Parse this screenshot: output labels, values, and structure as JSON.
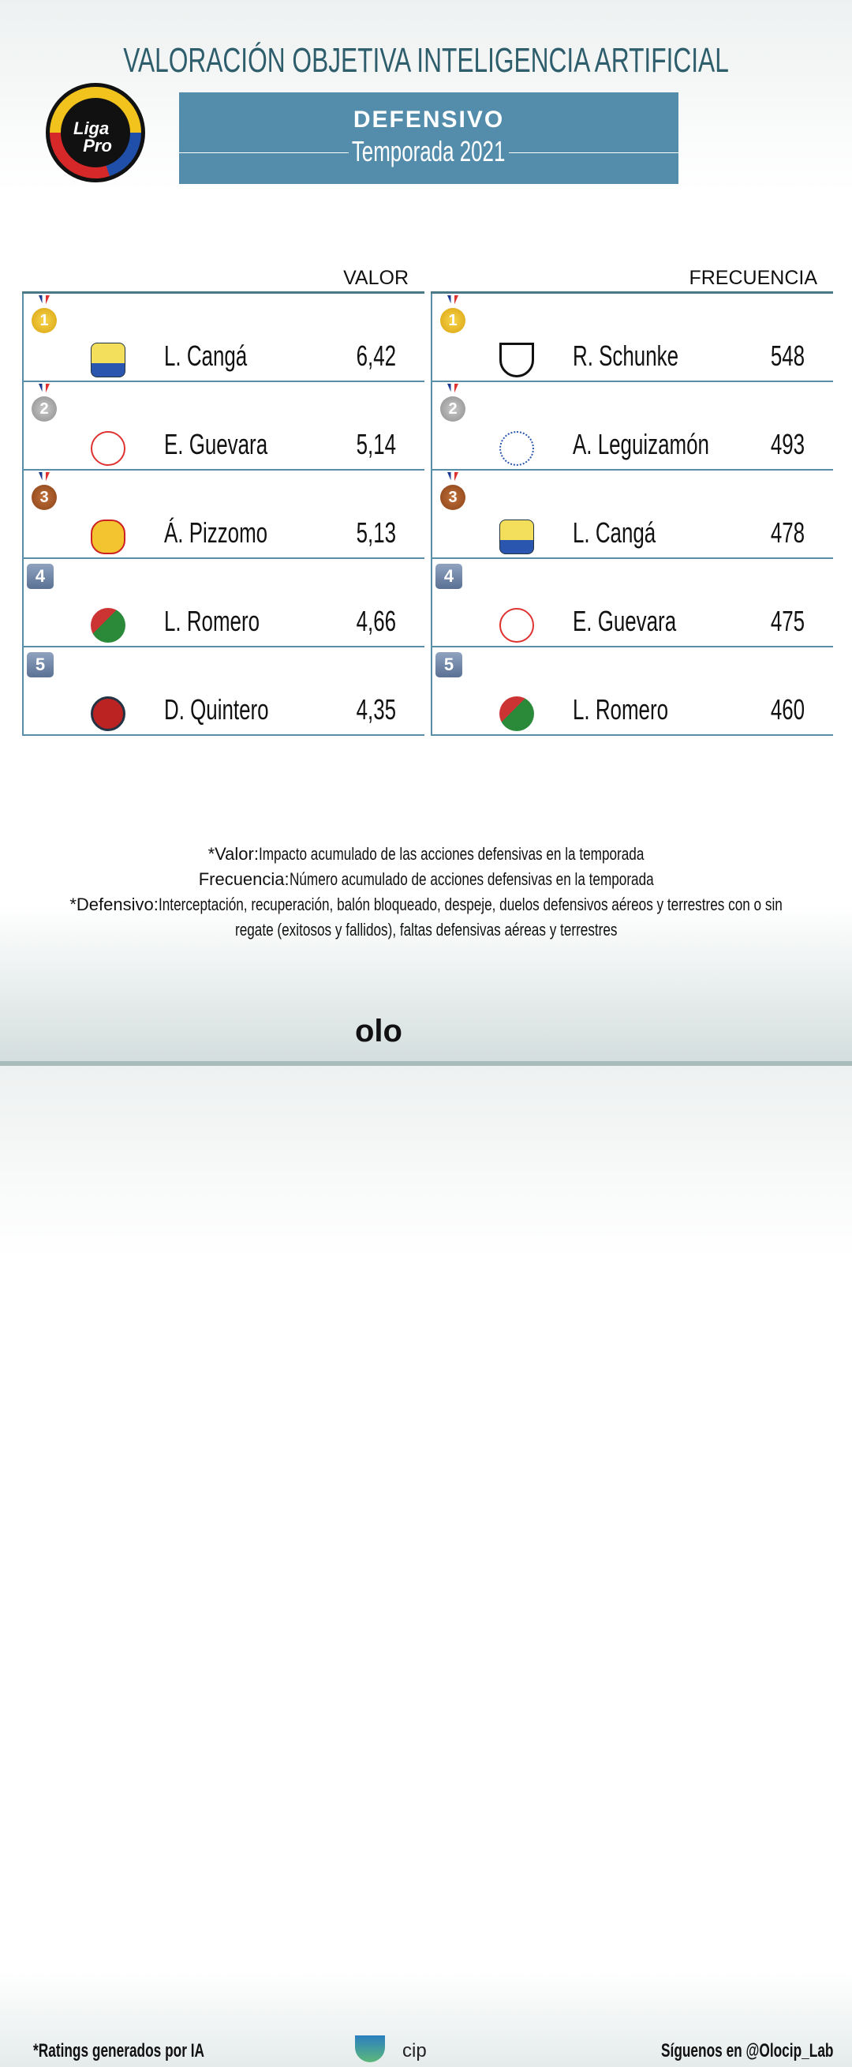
{
  "title": "VALORACIÓN OBJETIVA INTELIGENCIA ARTIFICIAL",
  "banner": {
    "section": "DEFENSIVO",
    "season": "Temporada 2021",
    "color": "#548dab"
  },
  "logo": {
    "text1": "Liga",
    "text2": "Pro"
  },
  "tables": [
    {
      "header": "VALOR",
      "rows": [
        {
          "rank": "1",
          "medal": "gold",
          "club": "Delfín SC",
          "name": "L. Cangá",
          "value": "6,42"
        },
        {
          "rank": "2",
          "medal": "silver",
          "club": "Técnico Universitario",
          "name": "E. Guevara",
          "value": "5,14"
        },
        {
          "rank": "3",
          "medal": "bronze",
          "club": "Aucas",
          "name": "Á. Pizzomo",
          "value": "5,13"
        },
        {
          "rank": "4",
          "medal": "none",
          "club": "Mushuc Runa",
          "name": "L. Romero",
          "value": "4,66"
        },
        {
          "rank": "5",
          "medal": "none",
          "club": "Deportivo Cuenca",
          "name": "D. Quintero",
          "value": "4,35"
        }
      ]
    },
    {
      "header": "FRECUENCIA",
      "rows": [
        {
          "rank": "1",
          "medal": "gold",
          "club": "Independiente del Valle",
          "name": "R. Schunke",
          "value": "548"
        },
        {
          "rank": "2",
          "medal": "silver",
          "club": "Emelec",
          "name": "A. Leguizamón",
          "value": "493"
        },
        {
          "rank": "3",
          "medal": "bronze",
          "club": "Delfín SC",
          "name": "L. Cangá",
          "value": "478"
        },
        {
          "rank": "4",
          "medal": "none",
          "club": "Técnico Universitario",
          "name": "E. Guevara",
          "value": "475"
        },
        {
          "rank": "5",
          "medal": "none",
          "club": "Mushuc Runa",
          "name": "L. Romero",
          "value": "460"
        }
      ]
    }
  ],
  "notes": [
    {
      "label": "*Valor:",
      "text": " Impacto acumulado de las acciones defensivas en la temporada"
    },
    {
      "label": "Frecuencia:",
      "text": " Número acumulado de acciones defensivas en la temporada"
    },
    {
      "label": "*Defensivo:",
      "text": " Interceptación, recuperación, balón bloqueado, despeje, duelos defensivos aéreos y terrestres con o sin"
    },
    {
      "label": "",
      "text": "regate (exitosos y fallidos), faltas defensivas aéreas y terrestres"
    }
  ],
  "footer": {
    "left": "*Ratings generados por IA",
    "brand_bold": "olo",
    "brand_light": "cip",
    "right": "Síguenos en @Olocip_Lab"
  }
}
